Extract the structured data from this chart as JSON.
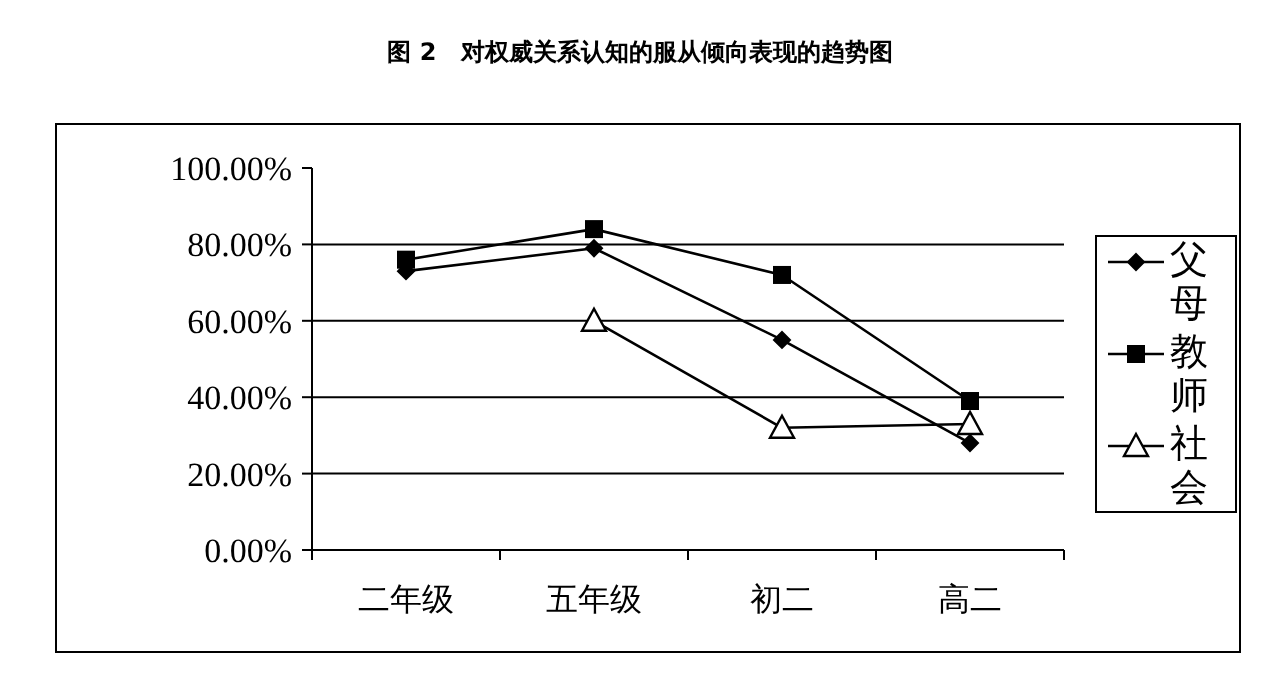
{
  "chart_data": {
    "type": "line",
    "title": "图 2　对权威关系认知的服从倾向表现的趋势图",
    "categories": [
      "二年级",
      "五年级",
      "初二",
      "高二"
    ],
    "series": [
      {
        "name": "父母",
        "color": "#000000",
        "marker": "diamond",
        "values": [
          73,
          79,
          55,
          28
        ]
      },
      {
        "name": "教师",
        "color": "#000000",
        "marker": "square",
        "values": [
          76,
          84,
          72,
          39
        ]
      },
      {
        "name": "社会",
        "color": "#000000",
        "marker": "triangle",
        "values": [
          null,
          60,
          32,
          33
        ]
      }
    ],
    "ylim": [
      0,
      100
    ],
    "yticks": [
      {
        "value": 0,
        "label": "0.00%"
      },
      {
        "value": 20,
        "label": "20.00%"
      },
      {
        "value": 40,
        "label": "40.00%"
      },
      {
        "value": 60,
        "label": "60.00%"
      },
      {
        "value": 80,
        "label": "80.00%"
      },
      {
        "value": 100,
        "label": "100.00%"
      }
    ],
    "grid": "y",
    "legend": "right"
  }
}
